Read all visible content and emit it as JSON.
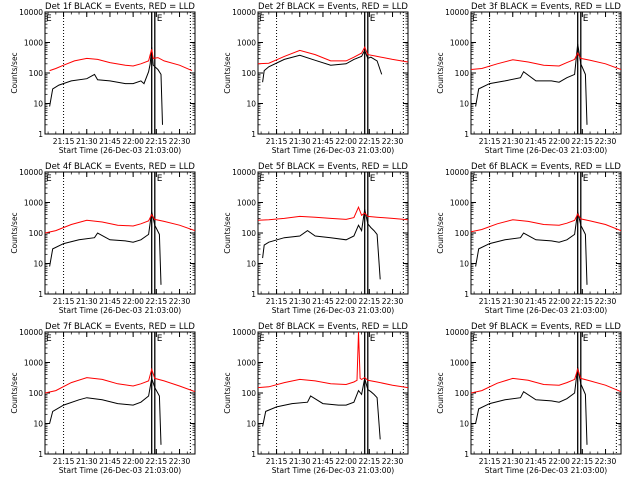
{
  "figure": {
    "ylabel": "Counts/sec",
    "xlabel": "Start Time (26-Dec-03 21:03:00)",
    "marker_label": "E",
    "colors": {
      "events": "#000000",
      "lld": "#ff0000",
      "axes": "#000000",
      "background": "#ffffff"
    }
  },
  "chart_data": [
    {
      "type": "line",
      "title": "Det 1f BLACK = Events, RED = LLD",
      "xlabel": "Start Time (26-Dec-03 21:03:00)",
      "ylabel": "Counts/sec",
      "yscale": "log",
      "ylim": [
        1,
        10000
      ],
      "yticks": [
        "1",
        "10",
        "100",
        "1000",
        "10000"
      ],
      "xticks": [
        "21:15",
        "21:30",
        "21:45",
        "22:00",
        "22:15",
        "22:30"
      ],
      "xlim": [
        "21:03",
        "22:40"
      ],
      "dotted_lines": [
        "21:15",
        "22:37"
      ],
      "solid_lines": [
        "22:12",
        "22:14"
      ],
      "series": [
        {
          "name": "Events",
          "color": "#000000",
          "x": [
            "21:06",
            "21:08",
            "21:12",
            "21:20",
            "21:30",
            "21:35",
            "21:37",
            "21:45",
            "21:55",
            "22:00",
            "22:05",
            "22:07",
            "22:10",
            "22:11",
            "22:12",
            "22:13",
            "22:16",
            "22:18",
            "22:19"
          ],
          "y": [
            8,
            30,
            40,
            55,
            65,
            90,
            60,
            55,
            45,
            45,
            55,
            45,
            110,
            200,
            700,
            180,
            130,
            90,
            2
          ]
        },
        {
          "name": "LLD",
          "color": "#ff0000",
          "x": [
            "21:06",
            "21:10",
            "21:15",
            "21:22",
            "21:30",
            "21:37",
            "21:45",
            "21:55",
            "22:00",
            "22:05",
            "22:10",
            "22:11",
            "22:12",
            "22:13",
            "22:16",
            "22:20",
            "22:30",
            "22:38"
          ],
          "y": [
            120,
            140,
            180,
            250,
            300,
            280,
            220,
            180,
            170,
            200,
            250,
            400,
            600,
            300,
            320,
            250,
            180,
            120
          ]
        }
      ]
    },
    {
      "type": "line",
      "title": "Det 2f BLACK = Events, RED = LLD",
      "xlabel": "Start Time (26-Dec-03 21:03:00)",
      "ylabel": "Counts/sec",
      "yscale": "log",
      "ylim": [
        1,
        10000
      ],
      "yticks": [
        "1",
        "10",
        "100",
        "1000",
        "10000"
      ],
      "xticks": [
        "21:15",
        "21:30",
        "21:45",
        "22:00",
        "22:15",
        "22:30"
      ],
      "xlim": [
        "21:03",
        "22:40"
      ],
      "dotted_lines": [
        "21:15",
        "22:37"
      ],
      "solid_lines": [
        "22:12",
        "22:14"
      ],
      "series": [
        {
          "name": "Events",
          "color": "#000000",
          "x": [
            "21:06",
            "21:07",
            "21:10",
            "21:20",
            "21:30",
            "21:40",
            "21:50",
            "22:00",
            "22:05",
            "22:10",
            "22:12",
            "22:14",
            "22:16",
            "22:20",
            "22:23"
          ],
          "y": [
            50,
            120,
            160,
            280,
            380,
            260,
            180,
            200,
            280,
            350,
            550,
            300,
            330,
            250,
            90
          ]
        },
        {
          "name": "LLD",
          "color": "#ff0000",
          "x": [
            "21:03",
            "21:10",
            "21:20",
            "21:30",
            "21:40",
            "21:50",
            "22:00",
            "22:05",
            "22:10",
            "22:12",
            "22:14",
            "22:20",
            "22:30",
            "22:40"
          ],
          "y": [
            200,
            210,
            350,
            550,
            400,
            250,
            250,
            330,
            450,
            700,
            400,
            350,
            280,
            230
          ]
        }
      ]
    },
    {
      "type": "line",
      "title": "Det 3f BLACK = Events, RED = LLD",
      "xlabel": "Start Time (26-Dec-03 21:03:00)",
      "ylabel": "Counts/sec",
      "yscale": "log",
      "ylim": [
        1,
        10000
      ],
      "yticks": [
        "1",
        "10",
        "100",
        "1000",
        "10000"
      ],
      "xticks": [
        "21:15",
        "21:30",
        "21:45",
        "22:00",
        "22:15",
        "22:30"
      ],
      "xlim": [
        "21:03",
        "22:40"
      ],
      "dotted_lines": [
        "21:15",
        "22:37"
      ],
      "solid_lines": [
        "22:12",
        "22:14"
      ],
      "series": [
        {
          "name": "Events",
          "color": "#000000",
          "x": [
            "21:06",
            "21:08",
            "21:15",
            "21:25",
            "21:35",
            "21:37",
            "21:45",
            "21:55",
            "22:00",
            "22:05",
            "22:10",
            "22:12",
            "22:14",
            "22:17",
            "22:18"
          ],
          "y": [
            8,
            30,
            45,
            55,
            70,
            110,
            55,
            55,
            50,
            70,
            90,
            900,
            200,
            90,
            2
          ]
        },
        {
          "name": "LLD",
          "color": "#ff0000",
          "x": [
            "21:03",
            "21:10",
            "21:20",
            "21:30",
            "21:40",
            "21:50",
            "22:00",
            "22:05",
            "22:10",
            "22:12",
            "22:14",
            "22:20",
            "22:30",
            "22:40"
          ],
          "y": [
            130,
            140,
            200,
            270,
            230,
            180,
            170,
            220,
            280,
            450,
            300,
            260,
            200,
            130
          ]
        }
      ]
    },
    {
      "type": "line",
      "title": "Det 4f BLACK = Events, RED = LLD",
      "xlabel": "Start Time (26-Dec-03 21:03:00)",
      "ylabel": "Counts/sec",
      "yscale": "log",
      "ylim": [
        1,
        10000
      ],
      "yticks": [
        "1",
        "10",
        "100",
        "1000",
        "10000"
      ],
      "xticks": [
        "21:15",
        "21:30",
        "21:45",
        "22:00",
        "22:15",
        "22:30"
      ],
      "xlim": [
        "21:03",
        "22:40"
      ],
      "dotted_lines": [
        "21:15",
        "22:37"
      ],
      "solid_lines": [
        "22:12",
        "22:14"
      ],
      "series": [
        {
          "name": "Events",
          "color": "#000000",
          "x": [
            "21:06",
            "21:08",
            "21:15",
            "21:25",
            "21:35",
            "21:37",
            "21:45",
            "21:55",
            "22:00",
            "22:05",
            "22:10",
            "22:12",
            "22:14",
            "22:17",
            "22:18"
          ],
          "y": [
            8,
            30,
            45,
            60,
            70,
            100,
            60,
            55,
            50,
            60,
            90,
            500,
            180,
            90,
            2
          ]
        },
        {
          "name": "LLD",
          "color": "#ff0000",
          "x": [
            "21:03",
            "21:10",
            "21:20",
            "21:30",
            "21:40",
            "21:50",
            "22:00",
            "22:05",
            "22:10",
            "22:12",
            "22:14",
            "22:20",
            "22:30",
            "22:40"
          ],
          "y": [
            100,
            120,
            190,
            260,
            230,
            180,
            170,
            200,
            250,
            400,
            280,
            240,
            180,
            120
          ]
        }
      ]
    },
    {
      "type": "line",
      "title": "Det 5f BLACK = Events, RED = LLD",
      "xlabel": "Start Time (26-Dec-03 21:03:00)",
      "ylabel": "Counts/sec",
      "yscale": "log",
      "ylim": [
        1,
        10000
      ],
      "yticks": [
        "1",
        "10",
        "100",
        "1000",
        "10000"
      ],
      "xticks": [
        "21:15",
        "21:30",
        "21:45",
        "22:00",
        "22:15",
        "22:30"
      ],
      "xlim": [
        "21:03",
        "22:40"
      ],
      "dotted_lines": [
        "21:15",
        "22:37"
      ],
      "solid_lines": [
        "22:12",
        "22:14"
      ],
      "series": [
        {
          "name": "Events",
          "color": "#000000",
          "x": [
            "21:06",
            "21:07",
            "21:10",
            "21:20",
            "21:30",
            "21:35",
            "21:40",
            "21:50",
            "22:00",
            "22:05",
            "22:08",
            "22:10",
            "22:12",
            "22:14",
            "22:16",
            "22:18",
            "22:20",
            "22:22"
          ],
          "y": [
            15,
            40,
            50,
            70,
            80,
            120,
            80,
            70,
            60,
            80,
            180,
            120,
            600,
            200,
            150,
            120,
            90,
            3
          ]
        },
        {
          "name": "LLD",
          "color": "#ff0000",
          "x": [
            "21:03",
            "21:10",
            "21:20",
            "21:30",
            "21:40",
            "21:50",
            "22:00",
            "22:05",
            "22:08",
            "22:10",
            "22:12",
            "22:14",
            "22:20",
            "22:30",
            "22:40"
          ],
          "y": [
            260,
            270,
            300,
            350,
            330,
            300,
            280,
            320,
            700,
            380,
            450,
            350,
            330,
            300,
            270
          ]
        }
      ]
    },
    {
      "type": "line",
      "title": "Det 6f BLACK = Events, RED = LLD",
      "xlabel": "Start Time (26-Dec-03 21:03:00)",
      "ylabel": "Counts/sec",
      "yscale": "log",
      "ylim": [
        1,
        10000
      ],
      "yticks": [
        "1",
        "10",
        "100",
        "1000",
        "10000"
      ],
      "xticks": [
        "21:15",
        "21:30",
        "21:45",
        "22:00",
        "22:15",
        "22:30"
      ],
      "xlim": [
        "21:03",
        "22:40"
      ],
      "dotted_lines": [
        "21:15",
        "22:37"
      ],
      "solid_lines": [
        "22:12",
        "22:14"
      ],
      "series": [
        {
          "name": "Events",
          "color": "#000000",
          "x": [
            "21:06",
            "21:08",
            "21:15",
            "21:25",
            "21:35",
            "21:37",
            "21:45",
            "21:55",
            "22:00",
            "22:05",
            "22:10",
            "22:12",
            "22:14",
            "22:17",
            "22:18"
          ],
          "y": [
            8,
            30,
            45,
            60,
            70,
            100,
            60,
            55,
            50,
            60,
            90,
            500,
            180,
            90,
            2
          ]
        },
        {
          "name": "LLD",
          "color": "#ff0000",
          "x": [
            "21:03",
            "21:10",
            "21:20",
            "21:30",
            "21:40",
            "21:50",
            "22:00",
            "22:05",
            "22:10",
            "22:12",
            "22:14",
            "22:20",
            "22:30",
            "22:40"
          ],
          "y": [
            110,
            130,
            200,
            270,
            240,
            190,
            180,
            210,
            260,
            420,
            290,
            250,
            190,
            120
          ]
        }
      ]
    },
    {
      "type": "line",
      "title": "Det 7f BLACK = Events, RED = LLD",
      "xlabel": "Start Time (26-Dec-03 21:03:00)",
      "ylabel": "Counts/sec",
      "yscale": "log",
      "ylim": [
        1,
        10000
      ],
      "yticks": [
        "1",
        "10",
        "100",
        "1000",
        "10000"
      ],
      "xticks": [
        "21:15",
        "21:30",
        "21:45",
        "22:00",
        "22:15",
        "22:30"
      ],
      "xlim": [
        "21:03",
        "22:40"
      ],
      "dotted_lines": [
        "21:15",
        "22:37"
      ],
      "solid_lines": [
        "22:12",
        "22:14"
      ],
      "series": [
        {
          "name": "Events",
          "color": "#000000",
          "x": [
            "21:06",
            "21:08",
            "21:15",
            "21:25",
            "21:30",
            "21:40",
            "21:50",
            "22:00",
            "22:05",
            "22:10",
            "22:12",
            "22:14",
            "22:17",
            "22:18"
          ],
          "y": [
            10,
            25,
            40,
            60,
            70,
            60,
            45,
            40,
            50,
            80,
            300,
            150,
            80,
            2
          ]
        },
        {
          "name": "LLD",
          "color": "#ff0000",
          "x": [
            "21:03",
            "21:10",
            "21:20",
            "21:30",
            "21:40",
            "21:50",
            "22:00",
            "22:05",
            "22:10",
            "22:12",
            "22:14",
            "22:20",
            "22:30",
            "22:40"
          ],
          "y": [
            100,
            120,
            220,
            320,
            280,
            200,
            170,
            200,
            250,
            600,
            300,
            250,
            170,
            110
          ]
        }
      ]
    },
    {
      "type": "line",
      "title": "Det 8f BLACK = Events, RED = LLD",
      "xlabel": "Start Time (26-Dec-03 21:03:00)",
      "ylabel": "Counts/sec",
      "yscale": "log",
      "ylim": [
        1,
        10000
      ],
      "yticks": [
        "1",
        "10",
        "100",
        "1000",
        "10000"
      ],
      "xticks": [
        "21:15",
        "21:30",
        "21:45",
        "22:00",
        "22:15",
        "22:30"
      ],
      "xlim": [
        "21:03",
        "22:40"
      ],
      "dotted_lines": [
        "21:15",
        "22:37"
      ],
      "solid_lines": [
        "22:12",
        "22:14"
      ],
      "series": [
        {
          "name": "Events",
          "color": "#000000",
          "x": [
            "21:06",
            "21:08",
            "21:15",
            "21:25",
            "21:35",
            "21:37",
            "21:45",
            "21:55",
            "22:00",
            "22:05",
            "22:08",
            "22:10",
            "22:12",
            "22:14",
            "22:16",
            "22:18",
            "22:20",
            "22:22"
          ],
          "y": [
            8,
            25,
            35,
            45,
            50,
            80,
            45,
            40,
            40,
            50,
            120,
            90,
            300,
            130,
            110,
            90,
            70,
            3
          ]
        },
        {
          "name": "LLD",
          "color": "#ff0000",
          "x": [
            "21:03",
            "21:10",
            "21:20",
            "21:30",
            "21:40",
            "21:50",
            "22:00",
            "22:05",
            "22:07",
            "22:08",
            "22:09",
            "22:10",
            "22:12",
            "22:14",
            "22:20",
            "22:30",
            "22:40"
          ],
          "y": [
            150,
            160,
            220,
            280,
            250,
            200,
            190,
            230,
            260,
            10000,
            300,
            280,
            320,
            260,
            230,
            180,
            150
          ]
        }
      ]
    },
    {
      "type": "line",
      "title": "Det 9f BLACK = Events, RED = LLD",
      "xlabel": "Start Time (26-Dec-03 21:03:00)",
      "ylabel": "Counts/sec",
      "yscale": "log",
      "ylim": [
        1,
        10000
      ],
      "yticks": [
        "1",
        "10",
        "100",
        "1000",
        "10000"
      ],
      "xticks": [
        "21:15",
        "21:30",
        "21:45",
        "22:00",
        "22:15",
        "22:30"
      ],
      "xlim": [
        "21:03",
        "22:40"
      ],
      "dotted_lines": [
        "21:15",
        "22:37"
      ],
      "solid_lines": [
        "22:12",
        "22:14"
      ],
      "series": [
        {
          "name": "Events",
          "color": "#000000",
          "x": [
            "21:06",
            "21:08",
            "21:15",
            "21:25",
            "21:35",
            "21:37",
            "21:45",
            "21:55",
            "22:00",
            "22:05",
            "22:10",
            "22:12",
            "22:14",
            "22:17",
            "22:18"
          ],
          "y": [
            10,
            30,
            45,
            60,
            70,
            110,
            60,
            55,
            50,
            65,
            100,
            700,
            200,
            90,
            2
          ]
        },
        {
          "name": "LLD",
          "color": "#ff0000",
          "x": [
            "21:03",
            "21:10",
            "21:20",
            "21:30",
            "21:40",
            "21:50",
            "22:00",
            "22:05",
            "22:10",
            "22:12",
            "22:14",
            "22:20",
            "22:30",
            "22:40"
          ],
          "y": [
            100,
            120,
            210,
            300,
            260,
            190,
            180,
            220,
            280,
            600,
            300,
            250,
            180,
            110
          ]
        }
      ]
    }
  ]
}
